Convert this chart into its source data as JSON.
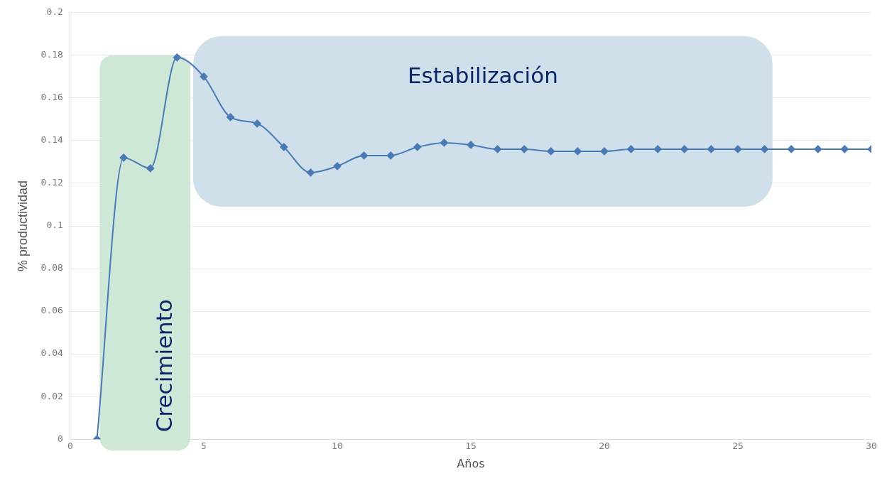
{
  "chart_data": {
    "type": "line",
    "xlabel": "Años",
    "ylabel": "% productividad",
    "x": [
      1,
      2,
      3,
      4,
      5,
      6,
      7,
      8,
      9,
      10,
      11,
      12,
      13,
      14,
      15,
      16,
      17,
      18,
      19,
      20,
      21,
      22,
      23,
      24,
      25,
      26,
      27,
      28,
      29,
      30
    ],
    "series": [
      {
        "color": "#4a7ab5",
        "values": [
          0,
          0.132,
          0.127,
          0.179,
          0.17,
          0.151,
          0.148,
          0.137,
          0.125,
          0.128,
          0.133,
          0.133,
          0.137,
          0.139,
          0.138,
          0.136,
          0.136,
          0.135,
          0.135,
          0.135,
          0.136,
          0.136,
          0.136,
          0.136,
          0.136,
          0.136,
          0.136,
          0.136,
          0.136,
          0.136
        ]
      }
    ],
    "xlim": [
      0,
      30
    ],
    "xticks": [
      0,
      5,
      10,
      15,
      20,
      25,
      30
    ],
    "ylim": [
      0,
      0.2
    ],
    "yticks": [
      0,
      0.02,
      0.04,
      0.06,
      0.08,
      0.1,
      0.12,
      0.14,
      0.16,
      0.18,
      0.2
    ],
    "bands": [
      {
        "axis": "x",
        "from": 1.1,
        "to": 4.5,
        "label": "Crecimiento",
        "color": "#cce6d4"
      },
      {
        "axis": "x",
        "from": 4.6,
        "to": 26.3,
        "label": "Estabilización",
        "color": "#cddeea"
      }
    ],
    "grid": "y",
    "legend": false,
    "marker": "diamond",
    "line_style": "solid"
  }
}
